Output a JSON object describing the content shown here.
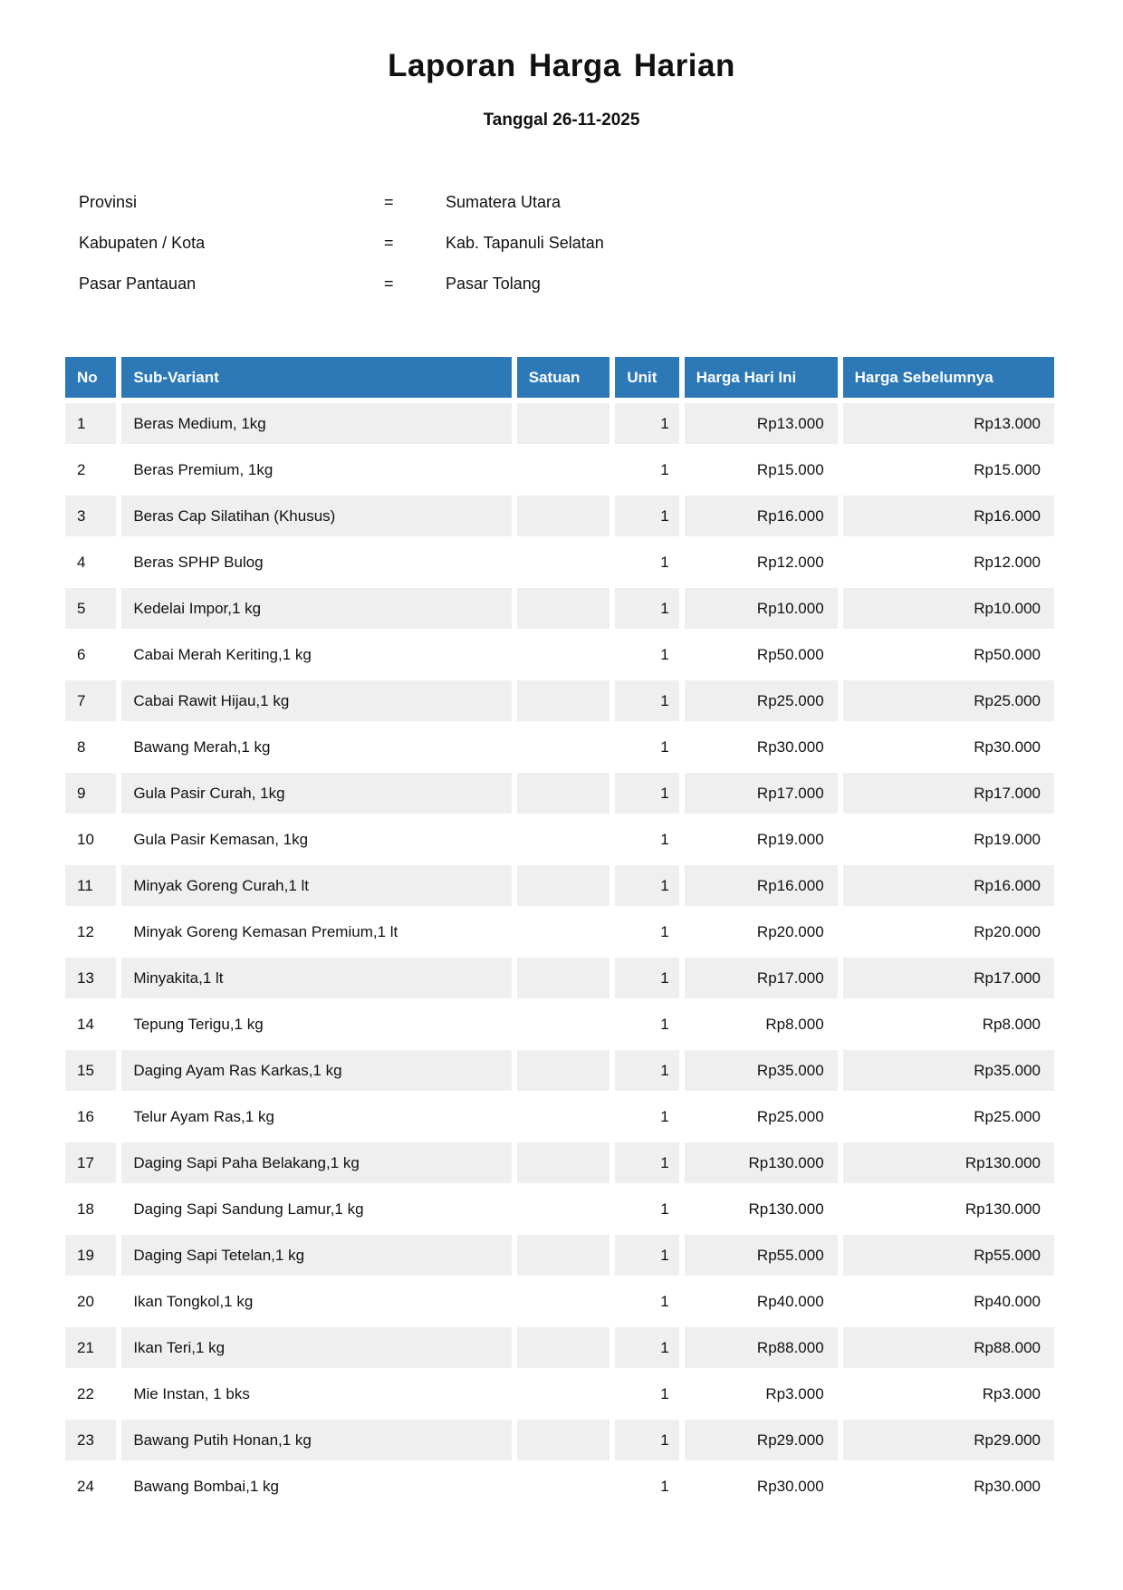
{
  "page": {
    "title": "Laporan Harga Harian",
    "subtitle": "Tanggal 26-11-2025"
  },
  "meta": {
    "separator": "=",
    "rows": [
      {
        "label": "Provinsi",
        "value": "Sumatera Utara"
      },
      {
        "label": "Kabupaten / Kota",
        "value": "Kab. Tapanuli Selatan"
      },
      {
        "label": "Pasar Pantauan",
        "value": "Pasar Tolang"
      }
    ]
  },
  "table": {
    "columns": [
      "No",
      "Sub-Variant",
      "Satuan",
      "Unit",
      "Harga Hari Ini",
      "Harga Sebelumnya"
    ],
    "rows": [
      {
        "no": "1",
        "sub_variant": "Beras Medium, 1kg",
        "satuan": "",
        "unit": "1",
        "harga_hari_ini": "Rp13.000",
        "harga_sebelumnya": "Rp13.000"
      },
      {
        "no": "2",
        "sub_variant": "Beras Premium, 1kg",
        "satuan": "",
        "unit": "1",
        "harga_hari_ini": "Rp15.000",
        "harga_sebelumnya": "Rp15.000"
      },
      {
        "no": "3",
        "sub_variant": "Beras Cap Silatihan (Khusus)",
        "satuan": "",
        "unit": "1",
        "harga_hari_ini": "Rp16.000",
        "harga_sebelumnya": "Rp16.000"
      },
      {
        "no": "4",
        "sub_variant": "Beras SPHP Bulog",
        "satuan": "",
        "unit": "1",
        "harga_hari_ini": "Rp12.000",
        "harga_sebelumnya": "Rp12.000"
      },
      {
        "no": "5",
        "sub_variant": "Kedelai Impor,1 kg",
        "satuan": "",
        "unit": "1",
        "harga_hari_ini": "Rp10.000",
        "harga_sebelumnya": "Rp10.000"
      },
      {
        "no": "6",
        "sub_variant": "Cabai Merah Keriting,1 kg",
        "satuan": "",
        "unit": "1",
        "harga_hari_ini": "Rp50.000",
        "harga_sebelumnya": "Rp50.000"
      },
      {
        "no": "7",
        "sub_variant": "Cabai Rawit Hijau,1 kg",
        "satuan": "",
        "unit": "1",
        "harga_hari_ini": "Rp25.000",
        "harga_sebelumnya": "Rp25.000"
      },
      {
        "no": "8",
        "sub_variant": "Bawang Merah,1 kg",
        "satuan": "",
        "unit": "1",
        "harga_hari_ini": "Rp30.000",
        "harga_sebelumnya": "Rp30.000"
      },
      {
        "no": "9",
        "sub_variant": "Gula Pasir Curah, 1kg",
        "satuan": "",
        "unit": "1",
        "harga_hari_ini": "Rp17.000",
        "harga_sebelumnya": "Rp17.000"
      },
      {
        "no": "10",
        "sub_variant": "Gula Pasir Kemasan, 1kg",
        "satuan": "",
        "unit": "1",
        "harga_hari_ini": "Rp19.000",
        "harga_sebelumnya": "Rp19.000"
      },
      {
        "no": "11",
        "sub_variant": "Minyak Goreng Curah,1 lt",
        "satuan": "",
        "unit": "1",
        "harga_hari_ini": "Rp16.000",
        "harga_sebelumnya": "Rp16.000"
      },
      {
        "no": "12",
        "sub_variant": "Minyak Goreng Kemasan Premium,1 lt",
        "satuan": "",
        "unit": "1",
        "harga_hari_ini": "Rp20.000",
        "harga_sebelumnya": "Rp20.000"
      },
      {
        "no": "13",
        "sub_variant": "Minyakita,1 lt",
        "satuan": "",
        "unit": "1",
        "harga_hari_ini": "Rp17.000",
        "harga_sebelumnya": "Rp17.000"
      },
      {
        "no": "14",
        "sub_variant": "Tepung Terigu,1 kg",
        "satuan": "",
        "unit": "1",
        "harga_hari_ini": "Rp8.000",
        "harga_sebelumnya": "Rp8.000"
      },
      {
        "no": "15",
        "sub_variant": "Daging Ayam Ras Karkas,1 kg",
        "satuan": "",
        "unit": "1",
        "harga_hari_ini": "Rp35.000",
        "harga_sebelumnya": "Rp35.000"
      },
      {
        "no": "16",
        "sub_variant": "Telur Ayam Ras,1 kg",
        "satuan": "",
        "unit": "1",
        "harga_hari_ini": "Rp25.000",
        "harga_sebelumnya": "Rp25.000"
      },
      {
        "no": "17",
        "sub_variant": "Daging Sapi Paha Belakang,1 kg",
        "satuan": "",
        "unit": "1",
        "harga_hari_ini": "Rp130.000",
        "harga_sebelumnya": "Rp130.000"
      },
      {
        "no": "18",
        "sub_variant": "Daging Sapi Sandung Lamur,1 kg",
        "satuan": "",
        "unit": "1",
        "harga_hari_ini": "Rp130.000",
        "harga_sebelumnya": "Rp130.000"
      },
      {
        "no": "19",
        "sub_variant": "Daging Sapi Tetelan,1 kg",
        "satuan": "",
        "unit": "1",
        "harga_hari_ini": "Rp55.000",
        "harga_sebelumnya": "Rp55.000"
      },
      {
        "no": "20",
        "sub_variant": "Ikan Tongkol,1 kg",
        "satuan": "",
        "unit": "1",
        "harga_hari_ini": "Rp40.000",
        "harga_sebelumnya": "Rp40.000"
      },
      {
        "no": "21",
        "sub_variant": "Ikan Teri,1 kg",
        "satuan": "",
        "unit": "1",
        "harga_hari_ini": "Rp88.000",
        "harga_sebelumnya": "Rp88.000"
      },
      {
        "no": "22",
        "sub_variant": "Mie Instan, 1 bks",
        "satuan": "",
        "unit": "1",
        "harga_hari_ini": "Rp3.000",
        "harga_sebelumnya": "Rp3.000"
      },
      {
        "no": "23",
        "sub_variant": "Bawang Putih Honan,1 kg",
        "satuan": "",
        "unit": "1",
        "harga_hari_ini": "Rp29.000",
        "harga_sebelumnya": "Rp29.000"
      },
      {
        "no": "24",
        "sub_variant": "Bawang Bombai,1 kg",
        "satuan": "",
        "unit": "1",
        "harga_hari_ini": "Rp30.000",
        "harga_sebelumnya": "Rp30.000"
      }
    ]
  },
  "colors": {
    "header_bg": "#2d79b8",
    "row_stripe": "#efefef",
    "text": "#111111"
  }
}
